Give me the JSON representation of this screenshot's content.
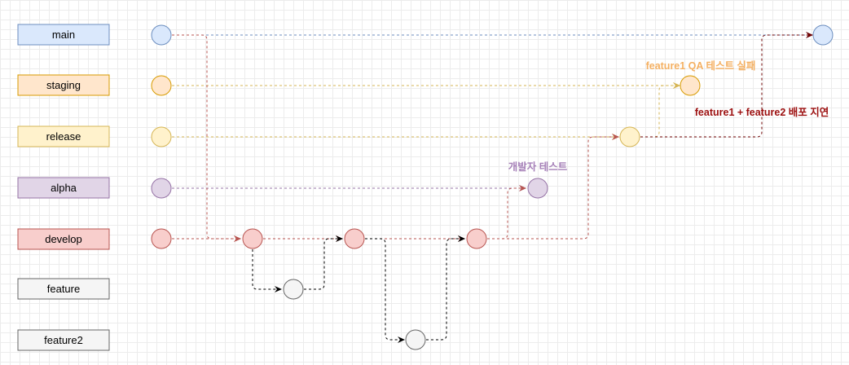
{
  "branches": [
    {
      "label": "main",
      "fill": "#dae8fc",
      "stroke": "#6c8ebf"
    },
    {
      "label": "staging",
      "fill": "#ffe6cc",
      "stroke": "#d79b00"
    },
    {
      "label": "release",
      "fill": "#fff2cc",
      "stroke": "#d6b656"
    },
    {
      "label": "alpha",
      "fill": "#e1d5e7",
      "stroke": "#9673a6"
    },
    {
      "label": "develop",
      "fill": "#f8cecc",
      "stroke": "#b85450"
    },
    {
      "label": "feature",
      "fill": "#f5f5f5",
      "stroke": "#666666"
    },
    {
      "label": "feature2",
      "fill": "#f5f5f5",
      "stroke": "#666666"
    }
  ],
  "annotations": {
    "staging_note": {
      "text": "feature1 QA 테스트 실패",
      "color": "#f4b062"
    },
    "main_note": {
      "text": "feature1 + feature2 배포 지연",
      "color": "#9c0f0f"
    },
    "alpha_note": {
      "text": "개발자 테스트",
      "color": "#a680b8"
    }
  },
  "colors": {
    "feature_edge": "#000000",
    "release_to_main_edge": "#6f0000"
  }
}
